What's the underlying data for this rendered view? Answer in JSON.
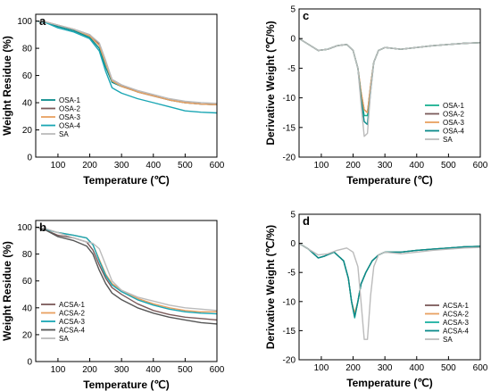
{
  "chart_data": [
    {
      "panel": "a",
      "type": "line",
      "xlabel": "Temperature (℃)",
      "ylabel": "Weight Residue (%)",
      "xlim": [
        30,
        600
      ],
      "ylim": [
        0,
        105
      ],
      "xticks": [
        100,
        200,
        300,
        400,
        500,
        600
      ],
      "yticks": [
        0,
        20,
        40,
        60,
        80,
        100
      ],
      "legend_position": "bottom-left",
      "series": [
        {
          "name": "OSA-1",
          "color": "#0a8a8a",
          "x": [
            30,
            60,
            100,
            150,
            200,
            230,
            250,
            270,
            300,
            350,
            400,
            450,
            500,
            550,
            600
          ],
          "y": [
            100,
            99,
            96,
            93,
            88,
            80,
            66,
            55,
            52,
            48,
            45,
            42,
            40,
            39,
            38.5
          ]
        },
        {
          "name": "OSA-2",
          "color": "#7a5a5a",
          "x": [
            30,
            60,
            100,
            150,
            200,
            230,
            250,
            270,
            300,
            350,
            400,
            450,
            500,
            550,
            600
          ],
          "y": [
            100,
            99.5,
            97,
            94,
            90,
            83,
            70,
            57,
            53,
            48,
            45,
            42,
            40,
            39,
            38.5
          ]
        },
        {
          "name": "OSA-3",
          "color": "#e8a060",
          "x": [
            30,
            60,
            100,
            150,
            200,
            230,
            250,
            270,
            300,
            350,
            400,
            450,
            500,
            550,
            600
          ],
          "y": [
            100,
            99.5,
            97,
            94,
            89,
            82,
            69,
            56,
            52,
            48,
            45,
            42,
            40,
            39,
            38.5
          ]
        },
        {
          "name": "OSA-4",
          "color": "#1aa6b4",
          "x": [
            30,
            60,
            100,
            150,
            200,
            230,
            250,
            270,
            300,
            350,
            400,
            450,
            500,
            550,
            600
          ],
          "y": [
            100,
            99,
            95,
            92,
            87,
            78,
            63,
            51,
            47,
            43,
            40,
            37,
            34,
            33,
            32.5
          ]
        },
        {
          "name": "SA",
          "color": "#bbbbbb",
          "x": [
            30,
            60,
            100,
            150,
            200,
            230,
            250,
            270,
            300,
            350,
            400,
            450,
            500,
            550,
            600
          ],
          "y": [
            100,
            99.5,
            97,
            94,
            90,
            84,
            71,
            57,
            53,
            49,
            46,
            43,
            41,
            40,
            39.5
          ]
        }
      ]
    },
    {
      "panel": "b",
      "type": "line",
      "xlabel": "Temperature (℃)",
      "ylabel": "Weight Residue (%)",
      "xlim": [
        30,
        600
      ],
      "ylim": [
        0,
        105
      ],
      "xticks": [
        100,
        200,
        300,
        400,
        500,
        600
      ],
      "yticks": [
        0,
        20,
        40,
        60,
        80,
        100
      ],
      "legend_position": "bottom-left",
      "series": [
        {
          "name": "ACSA-1",
          "color": "#7a5a5a",
          "x": [
            30,
            60,
            100,
            150,
            190,
            210,
            230,
            250,
            270,
            300,
            350,
            400,
            450,
            500,
            550,
            600
          ],
          "y": [
            100,
            98,
            94,
            92,
            89,
            83,
            72,
            62,
            55,
            50,
            43,
            38,
            35,
            33,
            32,
            31
          ]
        },
        {
          "name": "ACSA-2",
          "color": "#e8a060",
          "x": [
            30,
            60,
            100,
            150,
            190,
            210,
            230,
            250,
            270,
            300,
            350,
            400,
            450,
            500,
            550,
            600
          ],
          "y": [
            100,
            98.5,
            96,
            94,
            92,
            87,
            76,
            65,
            58,
            53,
            47,
            43,
            40,
            38,
            37,
            37
          ]
        },
        {
          "name": "ACSA-3",
          "color": "#1aa6b4",
          "x": [
            30,
            60,
            100,
            150,
            190,
            210,
            230,
            250,
            270,
            300,
            350,
            400,
            450,
            500,
            550,
            600
          ],
          "y": [
            100,
            98.5,
            96,
            94,
            92,
            87,
            75,
            64,
            57,
            52,
            46,
            42,
            39,
            37,
            36,
            35.5
          ]
        },
        {
          "name": "ACSA-4",
          "color": "#555555",
          "x": [
            30,
            60,
            100,
            150,
            190,
            210,
            230,
            250,
            270,
            300,
            350,
            400,
            450,
            500,
            550,
            600
          ],
          "y": [
            100,
            98,
            93,
            90,
            86,
            80,
            68,
            58,
            51,
            46,
            40,
            36,
            33,
            31,
            29,
            28
          ]
        },
        {
          "name": "SA",
          "color": "#bbbbbb",
          "x": [
            30,
            60,
            100,
            150,
            190,
            210,
            230,
            250,
            270,
            300,
            350,
            400,
            450,
            500,
            550,
            600
          ],
          "y": [
            100,
            99,
            96,
            92,
            89,
            88,
            84,
            72,
            60,
            53,
            48,
            45,
            42,
            40,
            39,
            38
          ]
        }
      ]
    },
    {
      "panel": "c",
      "type": "line",
      "xlabel": "Temperature (℃)",
      "ylabel": "Derivative Weight (℃/%)",
      "xlim": [
        30,
        600
      ],
      "ylim": [
        -20,
        5
      ],
      "xticks": [
        100,
        200,
        300,
        400,
        500,
        600
      ],
      "yticks": [
        -20,
        -15,
        -10,
        -5,
        0,
        5
      ],
      "legend_position": "bottom-right",
      "series": [
        {
          "name": "OSA-1",
          "color": "#1ab090",
          "x": [
            30,
            60,
            90,
            120,
            150,
            180,
            200,
            215,
            225,
            235,
            245,
            255,
            265,
            280,
            300,
            350,
            400,
            450,
            500,
            550,
            600
          ],
          "y": [
            0,
            -1,
            -2,
            -1.8,
            -1.2,
            -1,
            -2,
            -5,
            -10,
            -13,
            -13,
            -8,
            -4,
            -2,
            -1.5,
            -1.8,
            -1.5,
            -1.2,
            -1,
            -0.8,
            -0.7
          ]
        },
        {
          "name": "OSA-2",
          "color": "#7a5a5a",
          "x": [
            30,
            60,
            90,
            120,
            150,
            180,
            200,
            215,
            225,
            235,
            245,
            255,
            265,
            280,
            300,
            350,
            400,
            450,
            500,
            550,
            600
          ],
          "y": [
            0,
            -1,
            -2,
            -1.8,
            -1.2,
            -1,
            -2,
            -5,
            -9,
            -12,
            -12.5,
            -8,
            -4,
            -2,
            -1.5,
            -1.8,
            -1.5,
            -1.2,
            -1,
            -0.8,
            -0.7
          ]
        },
        {
          "name": "OSA-3",
          "color": "#e8a060",
          "x": [
            30,
            60,
            90,
            120,
            150,
            180,
            200,
            215,
            225,
            235,
            245,
            255,
            265,
            280,
            300,
            350,
            400,
            450,
            500,
            550,
            600
          ],
          "y": [
            0,
            -1,
            -2,
            -1.8,
            -1.2,
            -1,
            -2,
            -5,
            -9,
            -12,
            -12.5,
            -8,
            -4,
            -2,
            -1.5,
            -1.8,
            -1.5,
            -1.2,
            -1,
            -0.8,
            -0.7
          ]
        },
        {
          "name": "OSA-4",
          "color": "#0a8a8a",
          "x": [
            30,
            60,
            90,
            120,
            150,
            180,
            200,
            215,
            225,
            235,
            245,
            255,
            265,
            280,
            300,
            350,
            400,
            450,
            500,
            550,
            600
          ],
          "y": [
            0,
            -1,
            -2,
            -1.8,
            -1.2,
            -1,
            -2,
            -5,
            -10,
            -14,
            -14.5,
            -9,
            -4,
            -2,
            -1.5,
            -1.8,
            -1.5,
            -1.2,
            -1,
            -0.8,
            -0.7
          ]
        },
        {
          "name": "SA",
          "color": "#bbbbbb",
          "x": [
            30,
            60,
            90,
            120,
            150,
            180,
            200,
            215,
            225,
            235,
            245,
            255,
            265,
            280,
            300,
            350,
            400,
            450,
            500,
            550,
            600
          ],
          "y": [
            0,
            -1,
            -2,
            -1.8,
            -1.2,
            -1,
            -2,
            -5,
            -11,
            -16.5,
            -16,
            -9,
            -4,
            -2,
            -1.5,
            -1.8,
            -1.5,
            -1.2,
            -1,
            -0.8,
            -0.7
          ]
        }
      ]
    },
    {
      "panel": "d",
      "type": "line",
      "xlabel": "Temperature (℃)",
      "ylabel": "Derivative Weight (℃/%)",
      "xlim": [
        30,
        600
      ],
      "ylim": [
        -20,
        5
      ],
      "xticks": [
        100,
        200,
        300,
        400,
        500,
        600
      ],
      "yticks": [
        -20,
        -15,
        -10,
        -5,
        0,
        5
      ],
      "legend_position": "bottom-right",
      "series": [
        {
          "name": "ACSA-1",
          "color": "#7a5a5a",
          "x": [
            30,
            60,
            90,
            110,
            140,
            170,
            185,
            195,
            205,
            215,
            225,
            240,
            260,
            280,
            300,
            350,
            400,
            450,
            500,
            550,
            600
          ],
          "y": [
            0,
            -1,
            -2.5,
            -2.2,
            -1.5,
            -3,
            -6,
            -10,
            -12.5,
            -10,
            -7,
            -5,
            -3,
            -2,
            -1.5,
            -1.5,
            -1.2,
            -1,
            -0.8,
            -0.6,
            -0.5
          ]
        },
        {
          "name": "ACSA-2",
          "color": "#e8a060",
          "x": [
            30,
            60,
            90,
            110,
            140,
            170,
            185,
            195,
            205,
            215,
            225,
            240,
            260,
            280,
            300,
            350,
            400,
            450,
            500,
            550,
            600
          ],
          "y": [
            0,
            -1,
            -2.5,
            -2.2,
            -1.5,
            -3,
            -6,
            -10,
            -12,
            -10,
            -7,
            -5,
            -3,
            -2,
            -1.5,
            -1.5,
            -1.2,
            -1,
            -0.8,
            -0.6,
            -0.5
          ]
        },
        {
          "name": "ACSA-3",
          "color": "#1ab0a0",
          "x": [
            30,
            60,
            90,
            110,
            140,
            170,
            185,
            195,
            205,
            215,
            225,
            240,
            260,
            280,
            300,
            350,
            400,
            450,
            500,
            550,
            600
          ],
          "y": [
            0,
            -1,
            -2.5,
            -2.2,
            -1.5,
            -3,
            -6,
            -10,
            -12.8,
            -10,
            -7,
            -5,
            -3,
            -2,
            -1.5,
            -1.5,
            -1.2,
            -1,
            -0.8,
            -0.6,
            -0.5
          ]
        },
        {
          "name": "ACSA-4",
          "color": "#0a8a8a",
          "x": [
            30,
            60,
            90,
            110,
            140,
            170,
            185,
            195,
            205,
            215,
            225,
            240,
            260,
            280,
            300,
            350,
            400,
            450,
            500,
            550,
            600
          ],
          "y": [
            0,
            -1,
            -2.5,
            -2.2,
            -1.5,
            -3,
            -6,
            -10,
            -12.6,
            -10,
            -7,
            -5,
            -3,
            -2,
            -1.5,
            -1.5,
            -1.2,
            -1,
            -0.8,
            -0.6,
            -0.5
          ]
        },
        {
          "name": "SA",
          "color": "#bbbbbb",
          "x": [
            30,
            60,
            90,
            120,
            150,
            180,
            200,
            215,
            225,
            235,
            245,
            255,
            265,
            280,
            300,
            350,
            400,
            450,
            500,
            550,
            600
          ],
          "y": [
            0,
            -1,
            -2,
            -1.8,
            -1.2,
            -0.8,
            -1.5,
            -4,
            -10,
            -16.5,
            -16.5,
            -9,
            -4,
            -2,
            -1.5,
            -1.8,
            -1.5,
            -1.2,
            -1,
            -0.8,
            -0.7
          ]
        }
      ]
    }
  ]
}
